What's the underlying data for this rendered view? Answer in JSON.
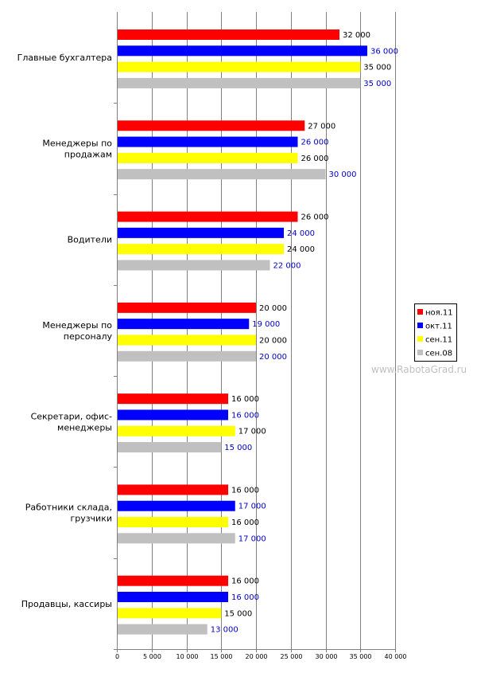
{
  "chart_data": {
    "type": "bar",
    "orientation": "horizontal",
    "title": "",
    "xlabel": "",
    "ylabel": "",
    "xlim": [
      0,
      40000
    ],
    "x_ticks": [
      0,
      5000,
      10000,
      15000,
      20000,
      25000,
      30000,
      35000,
      40000
    ],
    "x_tick_labels": [
      "0",
      "5 000",
      "10 000",
      "15 000",
      "20 000",
      "25 000",
      "30 000",
      "35 000",
      "40 000"
    ],
    "grid": true,
    "legend_position": "right",
    "categories": [
      [
        "Главные бухгалтера"
      ],
      [
        "Менеджеры по",
        "продажам"
      ],
      [
        "Водители"
      ],
      [
        "Менеджеры по",
        "персоналу"
      ],
      [
        "Секретари, офис-",
        "менеджеры"
      ],
      [
        "Работники склада,",
        "грузчики"
      ],
      [
        "Продавцы, кассиры"
      ]
    ],
    "series": [
      {
        "name": "ноя.11",
        "color": "#ff0000",
        "label_color": "#000000",
        "values": [
          32000,
          27000,
          26000,
          20000,
          16000,
          16000,
          16000
        ],
        "labels": [
          "32 000",
          "27 000",
          "26 000",
          "20 000",
          "16 000",
          "16 000",
          "16 000"
        ]
      },
      {
        "name": "окт.11",
        "color": "#0000ff",
        "label_color": "#0000cc",
        "values": [
          36000,
          26000,
          24000,
          19000,
          16000,
          17000,
          16000
        ],
        "labels": [
          "36 000",
          "26 000",
          "24 000",
          "19 000",
          "16 000",
          "17 000",
          "16 000"
        ]
      },
      {
        "name": "сен.11",
        "color": "#ffff00",
        "label_color": "#000000",
        "values": [
          35000,
          26000,
          24000,
          20000,
          17000,
          16000,
          15000
        ],
        "labels": [
          "35 000",
          "26 000",
          "24 000",
          "20 000",
          "17 000",
          "16 000",
          "15 000"
        ]
      },
      {
        "name": "сен.08",
        "color": "#c0c0c0",
        "label_color": "#0000cc",
        "values": [
          35000,
          30000,
          22000,
          20000,
          15000,
          17000,
          13000
        ],
        "labels": [
          "35 000",
          "30 000",
          "22 000",
          "20 000",
          "15 000",
          "17 000",
          "13 000"
        ]
      }
    ]
  },
  "watermark": "www.RabotaGrad.ru"
}
